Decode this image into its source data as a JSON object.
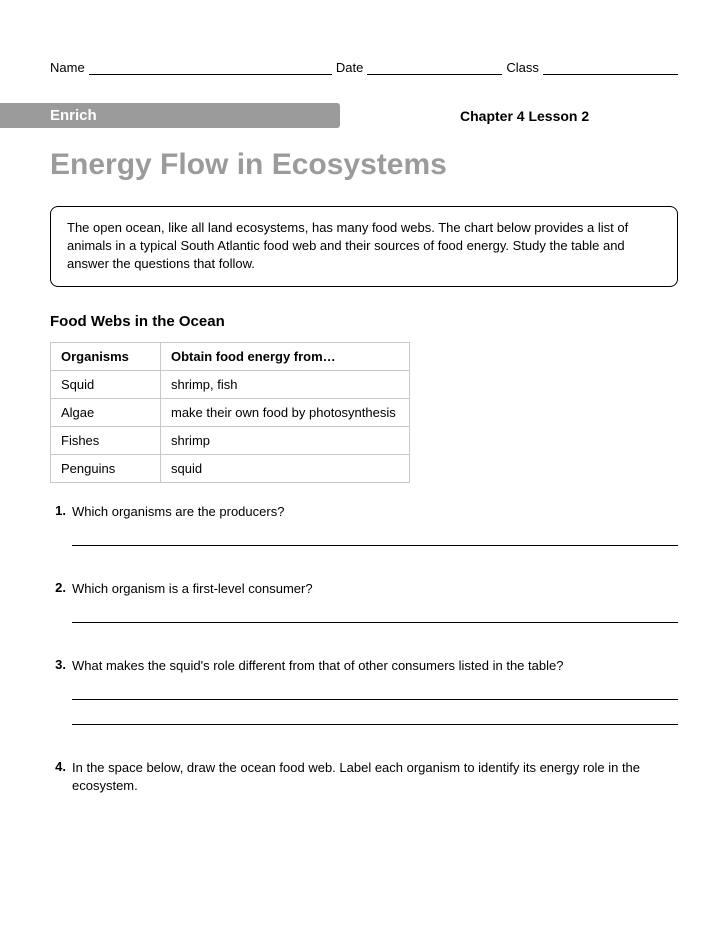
{
  "header": {
    "name_label": "Name",
    "date_label": "Date",
    "class_label": "Class"
  },
  "banner": "Enrich",
  "chapter": "Chapter 4 Lesson 2",
  "title": "Energy Flow in Ecosystems",
  "intro": "The open ocean, like all land ecosystems, has many food webs. The chart below provides a list of animals in a typical South Atlantic food web and their sources of food energy. Study the table and answer the questions that follow.",
  "subhead": "Food Webs in the Ocean",
  "table": {
    "col1": "Organisms",
    "col2": "Obtain food energy from…",
    "rows": {
      "0": {
        "org": "Squid",
        "src": "shrimp, fish"
      },
      "1": {
        "org": "Algae",
        "src": "make their own food by photosynthesis"
      },
      "2": {
        "org": "Fishes",
        "src": "shrimp"
      },
      "3": {
        "org": "Penguins",
        "src": "squid"
      }
    }
  },
  "questions": {
    "0": {
      "n": "1.",
      "t": "Which organisms are the producers?"
    },
    "1": {
      "n": "2.",
      "t": "Which organism is a first-level consumer?"
    },
    "2": {
      "n": "3.",
      "t": "What makes the squid's role different from that of other consumers listed in the table?"
    },
    "3": {
      "n": "4.",
      "t": "In the space below, draw the ocean food web. Label each organism to identify its energy role in the ecosystem."
    }
  }
}
